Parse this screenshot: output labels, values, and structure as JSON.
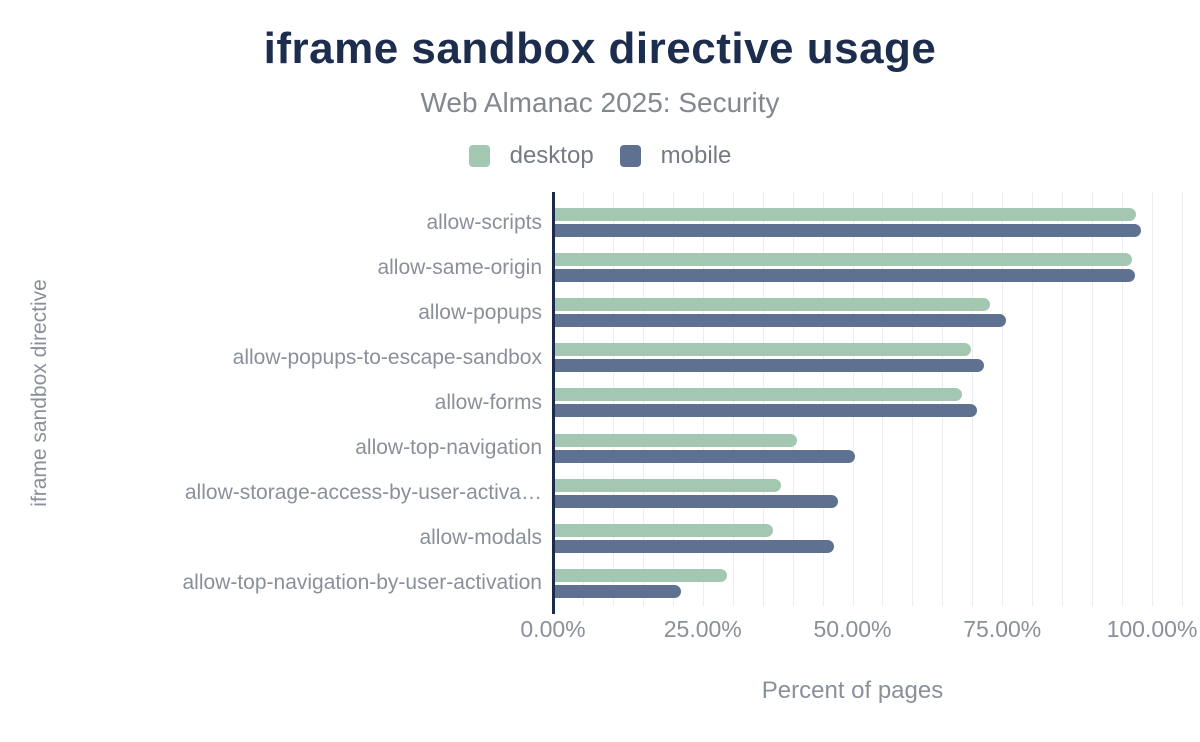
{
  "chart_data": {
    "type": "bar",
    "orientation": "horizontal",
    "title": "iframe sandbox directive usage",
    "subtitle": "Web Almanac 2025: Security",
    "xlabel": "Percent of pages",
    "ylabel": "iframe sandbox directive",
    "categories": [
      "allow-scripts",
      "allow-same-origin",
      "allow-popups",
      "allow-popups-to-escape-sandbox",
      "allow-forms",
      "allow-top-navigation",
      "allow-storage-access-by-user-activa…",
      "allow-modals",
      "allow-top-navigation-by-user-activation"
    ],
    "series": [
      {
        "name": "desktop",
        "color": "#a4c7b2",
        "values": [
          97.3,
          96.6,
          72.9,
          69.7,
          68.3,
          40.7,
          38.0,
          36.7,
          29.0
        ]
      },
      {
        "name": "mobile",
        "color": "#5e7190",
        "values": [
          98.2,
          97.2,
          75.7,
          72.0,
          70.8,
          50.5,
          47.5,
          46.9,
          21.4
        ]
      }
    ],
    "x_ticks": [
      "0.00%",
      "25.00%",
      "50.00%",
      "75.00%",
      "100.00%"
    ],
    "x_tick_values": [
      0,
      25,
      50,
      75,
      100
    ],
    "xlim": [
      0,
      105
    ],
    "grid_step": 5,
    "grid": true,
    "legend_position": "top"
  },
  "colors": {
    "background": "#ffffff",
    "title": "#1d2d4e",
    "subtitle": "#83878e",
    "axis_labels": "#8a909a",
    "legend_text": "#767b83",
    "axis_line": "#1c2b4a",
    "gridline": "#ededed",
    "desktop_bar": "#a4c7b2",
    "mobile_bar": "#5e7190"
  }
}
